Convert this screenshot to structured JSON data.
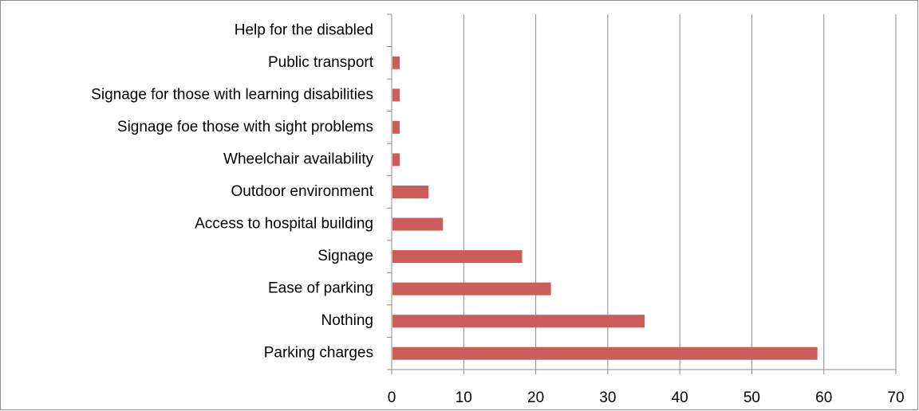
{
  "chart_data": {
    "type": "bar",
    "orientation": "horizontal",
    "categories": [
      "Parking charges",
      "Nothing",
      "Ease of parking",
      "Signage",
      "Access to hospital building",
      "Outdoor environment",
      "Wheelchair availability",
      "Signage foe those with sight problems",
      "Signage for those with learning disabilities",
      "Public transport",
      "Help for the disabled"
    ],
    "values": [
      59,
      35,
      22,
      18,
      7,
      5,
      1,
      1,
      1,
      1,
      0
    ],
    "color": "#cd5d5a",
    "xlim": [
      0,
      70
    ],
    "xticks": [
      0,
      10,
      20,
      30,
      40,
      50,
      60,
      70
    ],
    "grid": true
  }
}
